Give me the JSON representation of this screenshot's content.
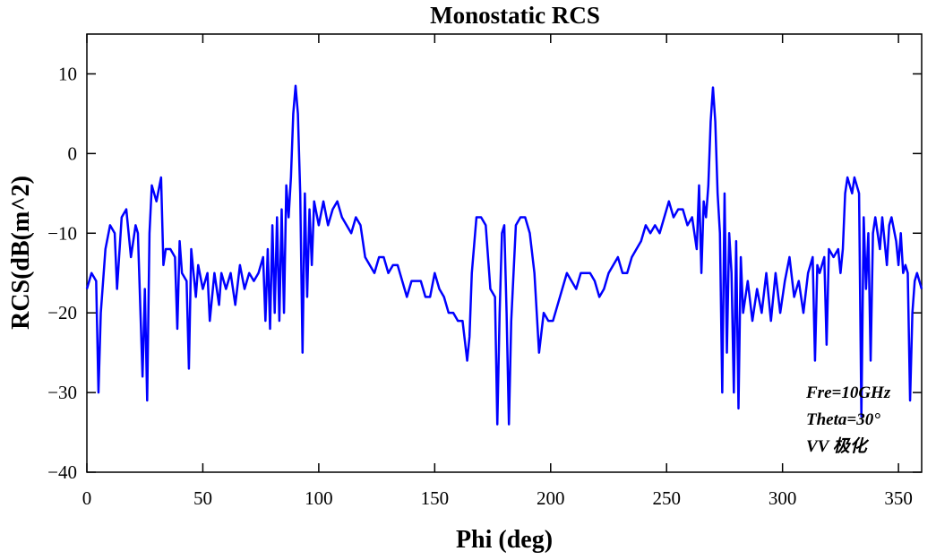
{
  "chart_data": {
    "type": "line",
    "title": "Monostatic RCS",
    "xlabel": "Phi (deg)",
    "ylabel": "RCS(dB(m^2)",
    "annotations": [
      "Fre=10GHz",
      "Theta=30°",
      "VV 极化"
    ],
    "xlim": [
      0,
      360
    ],
    "ylim": [
      -40,
      15
    ],
    "xticks": [
      0,
      50,
      100,
      150,
      200,
      250,
      300,
      350
    ],
    "yticks": [
      {
        "value": -40,
        "label": "−40"
      },
      {
        "value": -30,
        "label": "−30"
      },
      {
        "value": -20,
        "label": "−20"
      },
      {
        "value": -10,
        "label": "−10"
      },
      0,
      10
    ],
    "grid": false,
    "x": [
      0,
      2,
      4,
      5,
      6,
      8,
      10,
      12,
      13,
      15,
      17,
      19,
      21,
      22,
      24,
      25,
      26,
      27,
      28,
      30,
      32,
      33,
      34,
      36,
      38,
      39,
      40,
      41,
      43,
      44,
      45,
      47,
      48,
      50,
      52,
      53,
      55,
      57,
      58,
      60,
      62,
      64,
      66,
      68,
      70,
      72,
      74,
      76,
      77,
      78,
      79,
      80,
      81,
      82,
      83,
      84,
      85,
      86,
      87,
      88,
      89,
      90,
      91,
      92,
      93,
      94,
      95,
      96,
      97,
      98,
      100,
      102,
      104,
      106,
      108,
      110,
      112,
      114,
      116,
      118,
      120,
      122,
      124,
      126,
      128,
      130,
      132,
      134,
      136,
      138,
      140,
      142,
      144,
      146,
      148,
      150,
      152,
      154,
      156,
      158,
      160,
      162,
      164,
      165,
      166,
      168,
      170,
      172,
      174,
      176,
      177,
      178,
      179,
      180,
      181,
      182,
      183,
      185,
      187,
      189,
      191,
      193,
      195,
      197,
      199,
      201,
      203,
      205,
      207,
      209,
      211,
      213,
      215,
      217,
      219,
      221,
      223,
      225,
      227,
      229,
      231,
      233,
      235,
      237,
      239,
      241,
      243,
      245,
      247,
      249,
      251,
      253,
      255,
      257,
      259,
      261,
      263,
      264,
      265,
      266,
      267,
      268,
      269,
      270,
      271,
      272,
      273,
      274,
      275,
      276,
      277,
      278,
      279,
      280,
      281,
      282,
      283,
      285,
      287,
      289,
      291,
      293,
      295,
      297,
      299,
      301,
      303,
      305,
      307,
      309,
      311,
      313,
      314,
      315,
      316,
      318,
      319,
      320,
      322,
      324,
      325,
      326,
      327,
      328,
      330,
      331,
      333,
      334,
      335,
      336,
      337,
      338,
      339,
      340,
      342,
      343,
      345,
      346,
      347,
      349,
      350,
      351,
      352,
      353,
      354,
      355,
      356,
      357,
      358,
      360
    ],
    "series": [
      {
        "name": "RCS",
        "color": "#0000ff",
        "values": [
          -17,
          -15,
          -16,
          -30,
          -20,
          -12,
          -9,
          -10,
          -17,
          -8,
          -7,
          -13,
          -9,
          -10,
          -28,
          -17,
          -31,
          -10,
          -4,
          -6,
          -3,
          -14,
          -12,
          -12,
          -13,
          -22,
          -11,
          -15,
          -16,
          -27,
          -12,
          -18,
          -14,
          -17,
          -15,
          -21,
          -15,
          -19,
          -15,
          -17,
          -15,
          -19,
          -14,
          -17,
          -15,
          -16,
          -15,
          -13,
          -21,
          -12,
          -22,
          -9,
          -20,
          -8,
          -21,
          -7,
          -20,
          -4,
          -8,
          -3,
          5,
          8.5,
          5,
          -5,
          -25,
          -5,
          -18,
          -7,
          -14,
          -6,
          -9,
          -6,
          -9,
          -7,
          -6,
          -8,
          -9,
          -10,
          -8,
          -9,
          -13,
          -14,
          -15,
          -13,
          -13,
          -15,
          -14,
          -14,
          -16,
          -18,
          -16,
          -16,
          -16,
          -18,
          -18,
          -15,
          -17,
          -18,
          -20,
          -20,
          -21,
          -21,
          -26,
          -23,
          -15,
          -8,
          -8,
          -9,
          -17,
          -18,
          -34,
          -20,
          -10,
          -9,
          -20,
          -34,
          -21,
          -9,
          -8,
          -8,
          -10,
          -15,
          -25,
          -20,
          -21,
          -21,
          -19,
          -17,
          -15,
          -16,
          -17,
          -15,
          -15,
          -15,
          -16,
          -18,
          -17,
          -15,
          -14,
          -13,
          -15,
          -15,
          -13,
          -12,
          -11,
          -9,
          -10,
          -9,
          -10,
          -8,
          -6,
          -8,
          -7,
          -7,
          -9,
          -8,
          -12,
          -4,
          -15,
          -6,
          -8,
          -4,
          4,
          8.3,
          4,
          -5,
          -10,
          -30,
          -5,
          -25,
          -10,
          -15,
          -30,
          -11,
          -32,
          -13,
          -20,
          -16,
          -21,
          -17,
          -20,
          -15,
          -21,
          -15,
          -20,
          -16,
          -13,
          -18,
          -16,
          -20,
          -15,
          -13,
          -26,
          -14,
          -15,
          -13,
          -24,
          -12,
          -13,
          -12,
          -15,
          -12,
          -5,
          -3,
          -5,
          -3,
          -5,
          -33,
          -8,
          -17,
          -10,
          -26,
          -10,
          -8,
          -12,
          -8,
          -14,
          -9,
          -8,
          -11,
          -14,
          -10,
          -15,
          -14,
          -15,
          -31,
          -20,
          -16,
          -15,
          -17
        ]
      }
    ]
  }
}
